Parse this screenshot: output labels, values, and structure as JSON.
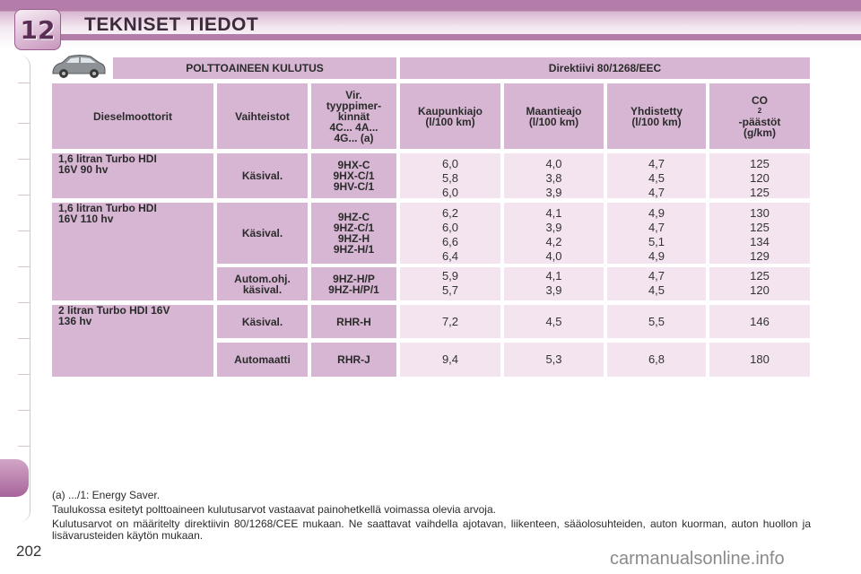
{
  "chapter_number": "12",
  "page_title": "TEKNISET TIEDOT",
  "page_number": "202",
  "table": {
    "section_left": "POLTTOAINEEN KULUTUS",
    "section_right": "Direktiivi 80/1268/EEC",
    "headers": {
      "engine": "Dieselmoottorit",
      "gearbox": "Vaihteistot",
      "types": [
        "Vir.",
        "tyyppimer-",
        "kinnät",
        "4C... 4A...",
        "4G... (a)"
      ],
      "urban": [
        "Kaupunkiajo",
        "(l/100 km)"
      ],
      "extra_urban": [
        "Maantieajo",
        "(l/100 km)"
      ],
      "combined": [
        "Yhdistetty",
        "(l/100 km)"
      ],
      "co2_prefix": "CO",
      "co2_sub": "2",
      "co2_suffix": "-päästöt",
      "co2_unit": "(g/km)"
    },
    "rows": [
      {
        "engine": [
          "1,6 litran Turbo HDI",
          "16V 90 hv"
        ],
        "gearbox": "Käsival.",
        "types": [
          "9HX-C",
          "9HX-C/1",
          "9HV-C/1"
        ],
        "urban": [
          "6,0",
          "5,8",
          "6,0"
        ],
        "extra_urban": [
          "4,0",
          "3,8",
          "3,9"
        ],
        "combined": [
          "4,7",
          "4,5",
          "4,7"
        ],
        "co2": [
          "125",
          "120",
          "125"
        ]
      },
      {
        "engine": [
          "1,6 litran Turbo HDI",
          "16V 110 hv"
        ],
        "gearbox": "Käsival.",
        "types": [
          "9HZ-C",
          "9HZ-C/1",
          "9HZ-H",
          "9HZ-H/1"
        ],
        "urban": [
          "6,2",
          "6,0",
          "6,6",
          "6,4"
        ],
        "extra_urban": [
          "4,1",
          "3,9",
          "4,2",
          "4,0"
        ],
        "combined": [
          "4,9",
          "4,7",
          "5,1",
          "4,9"
        ],
        "co2": [
          "130",
          "125",
          "134",
          "129"
        ]
      },
      {
        "gearbox_lines": [
          "Autom.ohj.",
          "käsival."
        ],
        "types": [
          "9HZ-H/P",
          "9HZ-H/P/1"
        ],
        "urban": [
          "5,9",
          "5,7"
        ],
        "extra_urban": [
          "4,1",
          "3,9"
        ],
        "combined": [
          "4,7",
          "4,5"
        ],
        "co2": [
          "125",
          "120"
        ]
      },
      {
        "engine": [
          "2 litran Turbo HDI 16V",
          "136 hv"
        ],
        "gearbox": "Käsival.",
        "types": [
          "RHR-H"
        ],
        "urban": [
          "7,2"
        ],
        "extra_urban": [
          "4,5"
        ],
        "combined": [
          "5,5"
        ],
        "co2": [
          "146"
        ]
      },
      {
        "gearbox": "Automaatti",
        "types": [
          "RHR-J"
        ],
        "urban": [
          "9,4"
        ],
        "extra_urban": [
          "5,3"
        ],
        "combined": [
          "6,8"
        ],
        "co2": [
          "180"
        ]
      }
    ]
  },
  "notes": {
    "footnote": "(a) .../1: Energy Saver.",
    "line1": "Taulukossa esitetyt polttoaineen kulutusarvot vastaavat painohetkellä voimassa olevia arvoja.",
    "line2": "Kulutusarvot on määritelty direktiivin 80/1268/CEE mukaan. Ne saattavat vaihdella ajotavan, liikenteen, sääolosuhteiden, auton kuorman, auton huollon ja lisävarusteiden käytön mukaan."
  },
  "watermark": "carmanualsonline.info",
  "icons": {
    "chapter_badge": "chapter-badge-icon",
    "car": "car-icon"
  },
  "colors": {
    "accent": "#b47ca8",
    "header_cell": "#d6b6d2",
    "value_cell": "#f3e4ef"
  }
}
